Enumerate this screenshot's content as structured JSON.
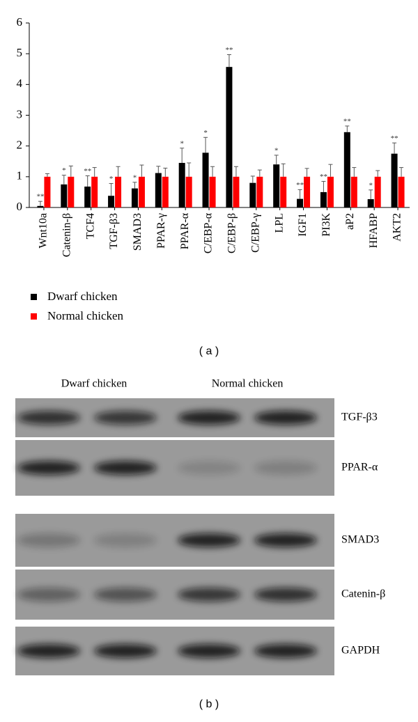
{
  "chart_data": {
    "type": "bar",
    "categories": [
      "Wnt10a",
      "Catenin-β",
      "TCF4",
      "TGF-β3",
      "SMAD3",
      "PPAR-γ",
      "PPAR-α",
      "C/EBP-α",
      "C/EBP-β",
      "C/EBP-γ",
      "LPL",
      "IGF1",
      "PI3K",
      "aP2",
      "HFABP",
      "AKT2"
    ],
    "series": [
      {
        "name": "Dwarf chicken",
        "color": "#000000",
        "values": [
          0.05,
          0.75,
          0.68,
          0.38,
          0.62,
          1.12,
          1.45,
          1.78,
          4.57,
          0.8,
          1.4,
          0.28,
          0.5,
          2.45,
          0.27,
          1.75
        ],
        "errors": [
          0.15,
          0.3,
          0.35,
          0.4,
          0.2,
          0.22,
          0.48,
          0.5,
          0.4,
          0.22,
          0.3,
          0.3,
          0.35,
          0.2,
          0.3,
          0.35
        ]
      },
      {
        "name": "Normal chicken",
        "color": "#ff0000",
        "values": [
          1,
          1,
          1,
          1,
          1,
          1,
          1,
          1,
          1,
          1,
          1,
          1,
          1,
          1,
          1,
          1
        ],
        "errors": [
          0.1,
          0.35,
          0.3,
          0.33,
          0.38,
          0.28,
          0.45,
          0.33,
          0.33,
          0.22,
          0.42,
          0.27,
          0.4,
          0.3,
          0.2,
          0.3
        ]
      }
    ],
    "significance": [
      "**",
      "*",
      "**",
      "*",
      "*",
      null,
      "*",
      "*",
      "**",
      null,
      "*",
      "**",
      "**",
      "**",
      "*",
      "**"
    ],
    "ylim": [
      0,
      6
    ],
    "yticks": [
      0,
      1,
      2,
      3,
      4,
      5,
      6
    ]
  },
  "panel_labels": [
    "( a )",
    "( b )"
  ],
  "blot": {
    "groups": [
      "Dwarf chicken",
      "Normal chicken"
    ],
    "bands": [
      "TGF-β3",
      "PPAR-α",
      "SMAD3",
      "Catenin-β",
      "GAPDH"
    ]
  }
}
